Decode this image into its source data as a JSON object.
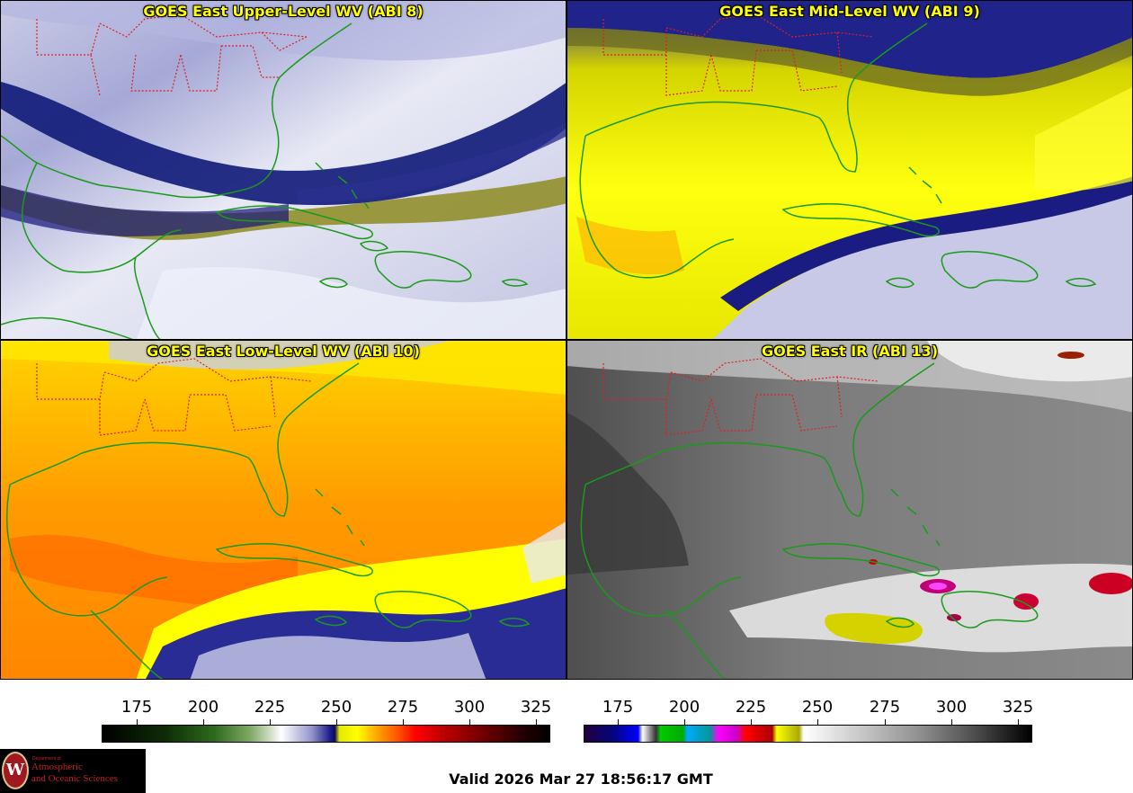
{
  "panels": [
    {
      "title": "GOES East Upper-Level WV (ABI 8)"
    },
    {
      "title": "GOES East Mid-Level WV (ABI 9)"
    },
    {
      "title": "GOES East Low-Level WV (ABI 10)"
    },
    {
      "title": "GOES East IR (ABI 13)"
    }
  ],
  "colorbars": {
    "wv_ticks": [
      "175",
      "200",
      "225",
      "250",
      "275",
      "300",
      "325"
    ],
    "ir_ticks": [
      "175",
      "200",
      "225",
      "250",
      "275",
      "300",
      "325"
    ]
  },
  "logo": {
    "seal_letter": "W",
    "small_text": "Department of",
    "line1": "Atmospheric",
    "line2": "and Oceanic Sciences"
  },
  "valid_time": "Valid 2026 Mar 27 18:56:17 GMT",
  "colors": {
    "title_yellow": "#ffff00",
    "coast_green": "#1a9a1a",
    "border_red": "#e02020"
  }
}
